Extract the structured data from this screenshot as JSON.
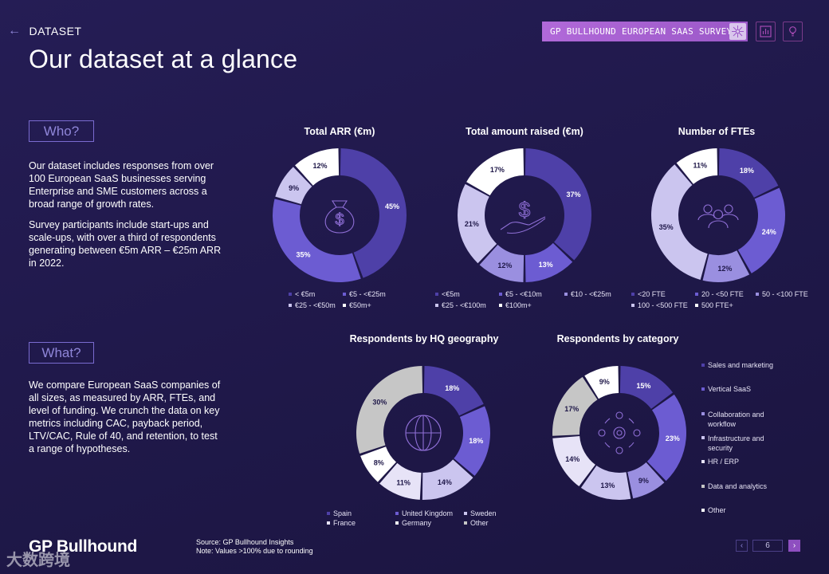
{
  "header": {
    "back_label": "DATASET",
    "title": "Our dataset at a glance",
    "survey_badge": "GP BULLHOUND EUROPEAN SAAS SURVEY"
  },
  "sections": {
    "who": {
      "label": "Who?",
      "para1": "Our dataset includes responses from over 100 European SaaS businesses serving Enterprise and SME customers across a broad range of growth rates.",
      "para2": "Survey participants include start-ups and scale-ups, with over a third of respondents generating between €5m ARR – €25m ARR in 2022."
    },
    "what": {
      "label": "What?",
      "para": "We compare European SaaS companies of all sizes, as measured by ARR, FTEs, and level of funding. We crunch the data on key metrics including CAC, payback period, LTV/CAC, Rule of 40, and retention, to test a range of hypotheses."
    }
  },
  "colors": {
    "dark": "#4e40a8",
    "medium": "#6c5cd2",
    "light": "#cbc5ef",
    "lighter": "#e7e3f7",
    "grey": "#c6c6c6",
    "white": "#ffffff"
  },
  "chart_data": [
    {
      "type": "pie",
      "title": "Total ARR (€m)",
      "categories": [
        "< €5m",
        "€5 - <€25m",
        "€25 - <€50m",
        "€50m+"
      ],
      "values": [
        45,
        35,
        9,
        12
      ],
      "labels": [
        "45%",
        "35%",
        "9%",
        "12%"
      ],
      "icon": "money-bag-icon"
    },
    {
      "type": "pie",
      "title": "Total amount raised (€m)",
      "categories": [
        "<€5m",
        "€5 - <€10m",
        "€10 - <€25m",
        "€25 - <€100m",
        "€100m+"
      ],
      "values": [
        37,
        13,
        12,
        21,
        17
      ],
      "labels": [
        "37%",
        "13%",
        "12%",
        "21%",
        "17%"
      ],
      "icon": "hand-dollar-icon"
    },
    {
      "type": "pie",
      "title": "Number of FTEs",
      "categories": [
        "<20 FTE",
        "20 - <50 FTE",
        "50 - <100 FTE",
        "100 - <500 FTE",
        "500 FTE+"
      ],
      "values": [
        18,
        24,
        12,
        35,
        11
      ],
      "labels": [
        "18%",
        "24%",
        "12%",
        "35%",
        "11%"
      ],
      "icon": "people-icon"
    },
    {
      "type": "pie",
      "title": "Respondents by HQ geography",
      "categories": [
        "Spain",
        "United Kingdom",
        "Sweden",
        "France",
        "Germany",
        "Other"
      ],
      "values": [
        18,
        18,
        14,
        11,
        8,
        30
      ],
      "labels": [
        "18%",
        "18%",
        "14%",
        "11%",
        "8%",
        "30%"
      ],
      "icon": "globe-icon"
    },
    {
      "type": "pie",
      "title": "Respondents by category",
      "categories": [
        "Sales and marketing",
        "Vertical SaaS",
        "Collaboration and workflow",
        "Infrastructure and security",
        "HR / ERP",
        "Data and analytics",
        "Other"
      ],
      "values": [
        15,
        23,
        9,
        13,
        14,
        17,
        9
      ],
      "labels": [
        "15%",
        "23%",
        "9%",
        "13%",
        "14%",
        "17%",
        "9%"
      ],
      "icon": "gear-network-icon"
    }
  ],
  "footer": {
    "logo": "GP Bullhound",
    "source_line1": "Source: GP Bullhound Insights",
    "source_line2": "Note: Values >100% due to rounding",
    "page_number": "6",
    "watermark": "大数跨境"
  }
}
